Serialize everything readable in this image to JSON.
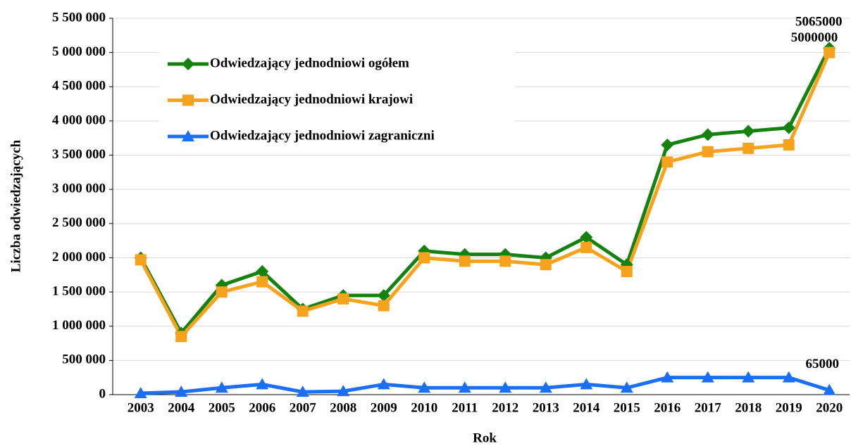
{
  "chart_data": {
    "type": "line",
    "x_label": "Rok",
    "y_label": "Liczba odwiedzających",
    "categories": [
      "2003",
      "2004",
      "2005",
      "2006",
      "2007",
      "2008",
      "2009",
      "2010",
      "2011",
      "2012",
      "2013",
      "2014",
      "2015",
      "2016",
      "2017",
      "2018",
      "2019",
      "2020"
    ],
    "series": [
      {
        "name": "Odwiedzający jednodniowi ogółem",
        "color": "#13820f",
        "marker": "diamond",
        "values": [
          2000000,
          900000,
          1600000,
          1800000,
          1250000,
          1450000,
          1450000,
          2100000,
          2050000,
          2050000,
          2000000,
          2300000,
          1900000,
          3650000,
          3800000,
          3850000,
          3900000,
          5065000
        ]
      },
      {
        "name": "Odwiedzający jednodniowi krajowi",
        "color": "#f7a21c",
        "marker": "square",
        "values": [
          1970000,
          850000,
          1500000,
          1650000,
          1220000,
          1400000,
          1300000,
          2000000,
          1950000,
          1950000,
          1900000,
          2150000,
          1800000,
          3400000,
          3550000,
          3600000,
          3650000,
          5000000
        ]
      },
      {
        "name": "Odwiedzający jednodniowi zagraniczni",
        "color": "#1a6ff5",
        "marker": "triangle",
        "values": [
          20000,
          40000,
          100000,
          150000,
          40000,
          50000,
          150000,
          100000,
          100000,
          100000,
          100000,
          150000,
          100000,
          250000,
          250000,
          250000,
          250000,
          65000
        ]
      }
    ],
    "ylim": [
      0,
      5500000
    ],
    "yticks": [
      0,
      {
        "value": 500000,
        "label": "500 000"
      },
      {
        "value": 1000000,
        "label": "1 000 000"
      },
      {
        "value": 1500000,
        "label": "1 500 000"
      },
      {
        "value": 2000000,
        "label": "2 000 000"
      },
      {
        "value": 2500000,
        "label": "2 500 000"
      },
      {
        "value": 3000000,
        "label": "3 000 000"
      },
      {
        "value": 3500000,
        "label": "3 500 000"
      },
      {
        "value": 4000000,
        "label": "4 000 000"
      },
      {
        "value": 4500000,
        "label": "4 500 000"
      },
      {
        "value": 5000000,
        "label": "5 000 000"
      },
      {
        "value": 5500000,
        "label": "5 500 000"
      }
    ],
    "grid": true,
    "legend": "upper left"
  }
}
